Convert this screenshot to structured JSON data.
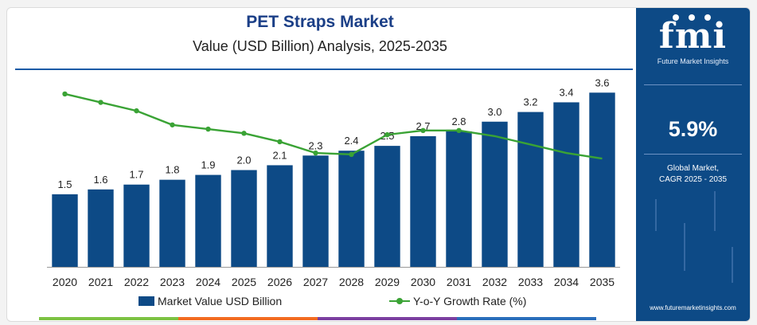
{
  "header": {
    "title": "PET Straps Market",
    "subtitle": "Value (USD Billion) Analysis, 2025-2035"
  },
  "brand": {
    "logo_text": "fmi",
    "logo_subtitle": "Future Market Insights",
    "cagr_value": "5.9%",
    "cagr_label_line1": "Global Market,",
    "cagr_label_line2": "CAGR 2025 - 2035",
    "url": "www.futuremarketinsights.com"
  },
  "colors": {
    "bar": "#0d4a86",
    "line": "#3aa335",
    "sidebar": "#0d4a86",
    "title": "#1b3f87",
    "footer": [
      "#7cc242",
      "#f26b21",
      "#7b3fa0",
      "#2a6ebb"
    ]
  },
  "chart_data": {
    "type": "bar",
    "title": "PET Straps Market",
    "subtitle": "Value (USD Billion) Analysis, 2025-2035",
    "categories": [
      "2020",
      "2021",
      "2022",
      "2023",
      "2024",
      "2025",
      "2026",
      "2027",
      "2028",
      "2029",
      "2030",
      "2031",
      "2032",
      "2033",
      "2034",
      "2035"
    ],
    "series": [
      {
        "name": "Market Value USD Billion",
        "type": "bar",
        "values": [
          1.5,
          1.6,
          1.7,
          1.8,
          1.9,
          2.0,
          2.1,
          2.3,
          2.4,
          2.5,
          2.7,
          2.8,
          3.0,
          3.2,
          3.4,
          3.6
        ],
        "labels": [
          "1.5",
          "1.6",
          "1.7",
          "1.8",
          "1.9",
          "2.0",
          "2.1",
          "2.3",
          "2.4",
          "2.5",
          "2.7",
          "2.8",
          "3.0",
          "3.2",
          "3.4",
          "3.6"
        ]
      },
      {
        "name": "Y-o-Y Growth Rate (%)",
        "type": "line",
        "values": [
          7.2,
          6.6,
          6.0,
          5.0,
          4.7,
          4.4,
          3.8,
          3.0,
          2.9,
          4.3,
          4.6,
          4.6,
          4.2,
          3.6,
          3.0,
          2.6
        ]
      }
    ],
    "grid": false,
    "legend": "bottom"
  }
}
